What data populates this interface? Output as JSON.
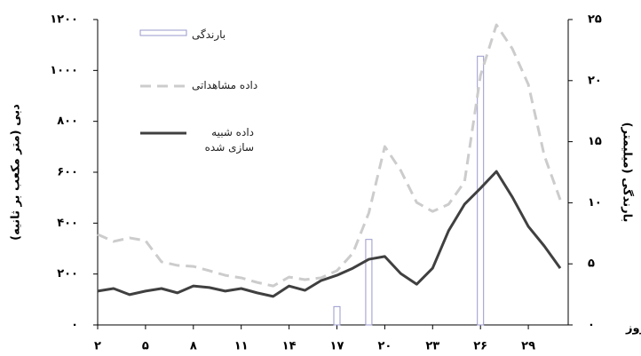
{
  "chart_data": {
    "type": "combo",
    "x_label": "روز",
    "y_label": "دبی (متر مکعب بر ثانیه)",
    "y2_label": "بارندگی (میلیمتر)",
    "x": [
      2,
      3,
      4,
      5,
      6,
      7,
      8,
      9,
      10,
      11,
      12,
      13,
      14,
      15,
      16,
      17,
      18,
      19,
      20,
      21,
      22,
      23,
      24,
      25,
      26,
      27,
      28,
      29,
      30,
      31
    ],
    "xlim": [
      2,
      31.5
    ],
    "xticks": [
      {
        "value": 2,
        "label": "۲"
      },
      {
        "value": 5,
        "label": "۵"
      },
      {
        "value": 8,
        "label": "۸"
      },
      {
        "value": 11,
        "label": "۱۱"
      },
      {
        "value": 14,
        "label": "۱۴"
      },
      {
        "value": 17,
        "label": "۱۷"
      },
      {
        "value": 20,
        "label": "۲۰"
      },
      {
        "value": 23,
        "label": "۲۳"
      },
      {
        "value": 26,
        "label": "۲۶"
      },
      {
        "value": 29,
        "label": "۲۹"
      }
    ],
    "ylim": [
      0,
      1200
    ],
    "yticks": [
      {
        "value": 0,
        "label": "۰"
      },
      {
        "value": 200,
        "label": "۲۰۰"
      },
      {
        "value": 400,
        "label": "۴۰۰"
      },
      {
        "value": 600,
        "label": "۶۰۰"
      },
      {
        "value": 800,
        "label": "۸۰۰"
      },
      {
        "value": 1000,
        "label": "۱۰۰۰"
      },
      {
        "value": 1200,
        "label": "۱۲۰۰"
      }
    ],
    "y2lim": [
      0,
      25
    ],
    "y2ticks": [
      {
        "value": 0,
        "label": "۰"
      },
      {
        "value": 5,
        "label": "۵"
      },
      {
        "value": 10,
        "label": "۱۰"
      },
      {
        "value": 15,
        "label": "۱۵"
      },
      {
        "value": 20,
        "label": "۲۰"
      },
      {
        "value": 25,
        "label": "۲۵"
      }
    ],
    "legend": "upper left",
    "series": [
      {
        "name": "بارندگی",
        "type": "bar",
        "axis": "y2",
        "color": "#9999cc",
        "values": [
          0,
          0,
          0,
          0,
          0,
          0,
          0,
          0,
          0,
          0,
          0,
          0,
          0,
          0,
          0,
          1.5,
          0,
          7,
          0,
          0,
          0,
          0,
          0,
          0,
          22,
          0,
          0,
          0,
          0,
          0
        ]
      },
      {
        "name": "داده مشاهداتی",
        "type": "line",
        "line_style": "dashed",
        "color": "#cccccc",
        "values": [
          356,
          328,
          342,
          331,
          248,
          234,
          230,
          213,
          195,
          185,
          167,
          153,
          188,
          178,
          185,
          213,
          282,
          440,
          701,
          607,
          481,
          446,
          474,
          562,
          980,
          1179,
          1085,
          945,
          666,
          492
        ]
      },
      {
        "name": "داده شبیه سازی شده",
        "type": "line",
        "line_style": "solid",
        "color": "#404040",
        "values": [
          133,
          143,
          119,
          133,
          143,
          126,
          153,
          147,
          133,
          143,
          126,
          112,
          153,
          136,
          174,
          195,
          223,
          258,
          269,
          202,
          160,
          223,
          370,
          474,
          537,
          603,
          502,
          387,
          310,
          223
        ]
      }
    ]
  }
}
